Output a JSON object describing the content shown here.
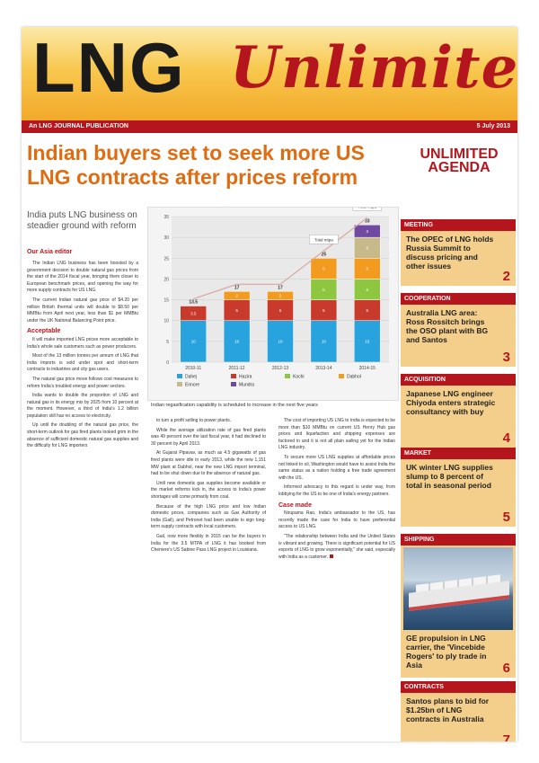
{
  "masthead": {
    "logo_left": "LNG",
    "logo_right": "Unlimited",
    "publication": "An LNG JOURNAL PUBLICATION",
    "date": "5 July 2013"
  },
  "article": {
    "headline": "Indian buyers set to seek more US LNG contracts after prices reform",
    "kicker": "India puts LNG business on steadier ground with reform",
    "byline": "Our Asia editor",
    "col1": [
      "The Indian LNG business has been boosted by a government decision to double natural gas prices from the start of the 2014 fiscal year, bringing them closer to European benchmark prices, and opening the way for more supply contracts for US LNG.",
      "The current Indian natural gas price of $4.20 per million British thermal units will double to $8.50 per MMBtu from April next year, less than $1 per MMBtu under the UK National Balancing Point price."
    ],
    "sub1": "Acceptable",
    "col1b": [
      "It will make imported LNG prices more acceptable to India's whole sale customers such as power producers.",
      "Most of the 13 million tonnes per annum of LNG that India imports is sold under spot and short-term contracts to industries and city gas users.",
      "The natural gas price move follows cost measures to reform India's troubled energy and power sectors.",
      "India wants to double the proportion of LNG and natural gas in its energy mix by 2025 from 10 percent at the moment. However, a third of India's 1.2 billion population still has no access to electricity.",
      "Up until the doubling of the natural gas price, the short-term outlook for gas fired plants looked grim in the absence of sufficient domestic natural gas supplies and the difficulty for LNG importers"
    ],
    "col2": [
      "to turn a profit selling to power plants.",
      "While the average utilization rate of gas fired plants was 49 percent over the last fiscal year, it had declined to 30 percent by April 2013.",
      "At Gujarat Pipavav, as much as 4.5 gigawatts of gas fired plants were idle in early 2013, while the new 1,151 MW plant at Dabhol, near the new LNG import terminal, had to be shut down due to the absence of natural gas.",
      "Until new domestic gas supplies become available or the market reforms kick in, the access to India's power shortages will come primarily from coal.",
      "Because of the high LNG price and low Indian domestic prices, companies such as Gas Authority of India (Gail), and Petronet had been unable to sign long-term supply contracts with local customers.",
      "Gail, now more flexibly in 2015 can be the buyers in India for the 3.5 MTPA of LNG it has booked from Cheniere's US Sabine Pass LNG project in Louisiana."
    ],
    "col3": [
      "The cost of importing US LNG to India is expected to be more than $10 MMBtu on current US Henry Hub gas prices and liquefaction and shipping expenses are factored in and it is not all plain sailing yet for the Indian LNG industry.",
      "To secure more US LNG supplies at affordable prices not linked to oil, Washington would have to assist India the same status as a nation holding a free trade agreement with the US.",
      "Informed advocacy to this regard is under way, from lobbying for the US to be one of India's energy partners."
    ],
    "sub3": "Case made",
    "col3b": [
      "Nirupama Rao, India's ambassador to the US, has recently made the case for India to have preferential access to US LNG.",
      "\"The relationship between India and the United States is vibrant and growing. There is significant potential for US exports of LNG to grow exponentially,\" she said, especially with India as a customer."
    ],
    "caption": "Indian regasification capability is scheduled to increase in the next five years"
  },
  "chart_data": {
    "type": "bar",
    "categories": [
      "2010-11",
      "2011-12",
      "2012-13",
      "2013-14",
      "2014-15"
    ],
    "series": [
      {
        "name": "Dahej",
        "color": "#29a3dd",
        "values": [
          10,
          10,
          10,
          10,
          10
        ]
      },
      {
        "name": "Hazira",
        "color": "#c83a2c",
        "values": [
          3.5,
          5,
          5,
          5,
          5
        ]
      },
      {
        "name": "Kochi",
        "color": "#8dc63f",
        "values": [
          0,
          0,
          0,
          5,
          5
        ]
      },
      {
        "name": "Dabhol",
        "color": "#f29b1f",
        "values": [
          0,
          2,
          2,
          5,
          5
        ]
      },
      {
        "name": "Ennore",
        "color": "#c8b98a",
        "values": [
          0,
          0,
          0,
          0,
          5
        ]
      },
      {
        "name": "Mundra",
        "color": "#6f4aa0",
        "values": [
          0,
          0,
          0,
          0,
          3
        ]
      }
    ],
    "totals": [
      13.5,
      17,
      17,
      25,
      33
    ],
    "annotations": [
      "Total mtpa",
      "Total mtpa"
    ],
    "ylim": [
      0,
      35
    ],
    "yticks": [
      0,
      5,
      10,
      15,
      20,
      25,
      30,
      35
    ],
    "trend_line": true,
    "legend": "bottom"
  },
  "sidebar": {
    "title": "UNLIMITED AGENDA",
    "sections": [
      {
        "label": "MEETING",
        "text": "The OPEC of LNG holds Russia Summit to discuss pricing and other issues",
        "page": "2"
      },
      {
        "label": "COOPERATION",
        "text": "Australia LNG area: Ross Rossitch brings the OSO plant with BG and Santos",
        "page": "3"
      },
      {
        "label": "ACQUISITION",
        "text": "Japanese LNG engineer Chiyoda enters strategic consultancy with buy",
        "page": "4"
      },
      {
        "label": "MARKET",
        "text": "UK winter LNG supplies slump to 8 percent of total in seasonal period",
        "page": "5"
      },
      {
        "label": "SHIPPING",
        "text": "GE propulsion in LNG carrier, the 'Vincebide Rogers' to ply trade in Asia",
        "page": "6"
      },
      {
        "label": "CONTRACTS",
        "text": "Santos plans to bid for $1.25bn of LNG contracts in Australia",
        "page": "7"
      }
    ]
  },
  "colors": {
    "brand_red": "#b5161d",
    "headline_orange": "#e06c12",
    "sidebar_tan": "#f3cf8b"
  }
}
